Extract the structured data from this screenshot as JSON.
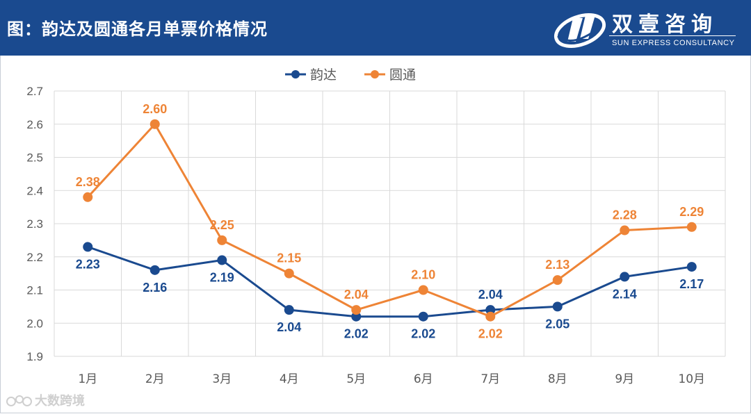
{
  "header": {
    "title": "图：韵达及圆通各月单票价格情况",
    "brand_cn": "双壹咨询",
    "brand_en": "SUN EXPRESS CONSULTANCY"
  },
  "watermark": "大数跨境",
  "colors": {
    "header_bg": "#1a4a8f",
    "yunda": "#1a4a8f",
    "yuantong": "#ee8436",
    "grid": "#d9d9d9",
    "axis_text": "#595959"
  },
  "chart_data": {
    "type": "line",
    "title": "",
    "xlabel": "",
    "ylabel": "",
    "categories": [
      "1月",
      "2月",
      "3月",
      "4月",
      "5月",
      "6月",
      "7月",
      "8月",
      "9月",
      "10月"
    ],
    "ylim": [
      1.9,
      2.7
    ],
    "yticks": [
      1.9,
      2.0,
      2.1,
      2.2,
      2.3,
      2.4,
      2.5,
      2.6,
      2.7
    ],
    "ytick_labels": [
      "1.9",
      "2.0",
      "2.1",
      "2.2",
      "2.3",
      "2.4",
      "2.5",
      "2.6",
      "2.7"
    ],
    "grid": true,
    "legend_position": "top-center",
    "series": [
      {
        "name": "韵达",
        "color": "#1a4a8f",
        "values": [
          2.23,
          2.16,
          2.19,
          2.04,
          2.02,
          2.02,
          2.04,
          2.05,
          2.14,
          2.17
        ],
        "labels": [
          "2.23",
          "2.16",
          "2.19",
          "2.04",
          "2.02",
          "2.02",
          "2.04",
          "2.05",
          "2.14",
          "2.17"
        ],
        "label_side": [
          "below",
          "below",
          "below",
          "below",
          "below",
          "below",
          "above",
          "below",
          "below",
          "below"
        ]
      },
      {
        "name": "圆通",
        "color": "#ee8436",
        "values": [
          2.38,
          2.6,
          2.25,
          2.15,
          2.04,
          2.1,
          2.02,
          2.13,
          2.28,
          2.29
        ],
        "labels": [
          "2.38",
          "2.60",
          "2.25",
          "2.15",
          "2.04",
          "2.10",
          "2.02",
          "2.13",
          "2.28",
          "2.29"
        ],
        "label_side": [
          "above",
          "above",
          "above",
          "above",
          "above",
          "above",
          "below",
          "above",
          "above",
          "above"
        ]
      }
    ]
  }
}
